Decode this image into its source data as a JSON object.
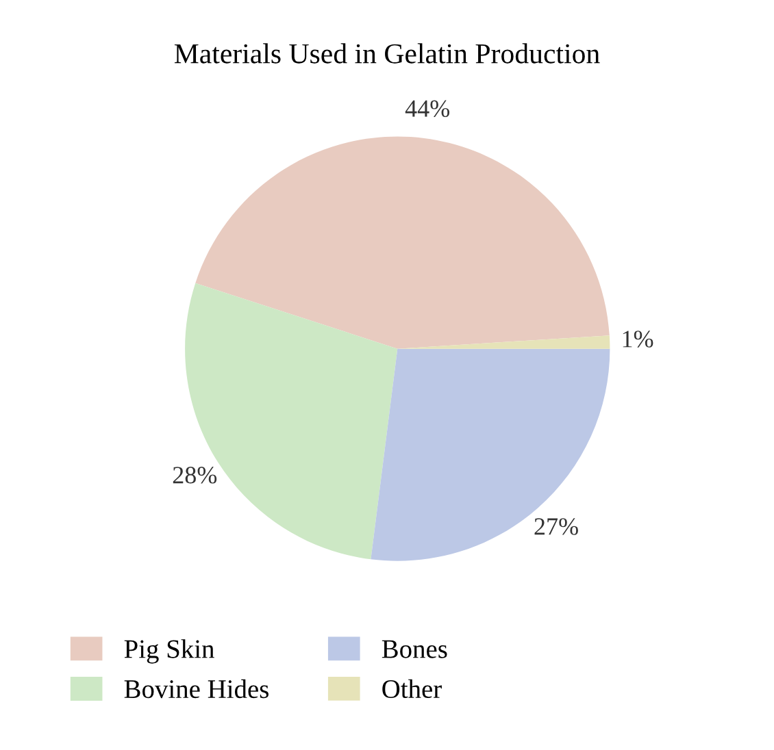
{
  "chart_data": {
    "type": "pie",
    "title": "Materials Used in Gelatin Production",
    "categories": [
      "Pig Skin",
      "Bovine Hides",
      "Bones",
      "Other"
    ],
    "values": [
      44,
      28,
      27,
      1
    ],
    "value_labels": [
      "44%",
      "28%",
      "27%",
      "1%"
    ],
    "colors": [
      "#e8cbc0",
      "#cde8c5",
      "#bcc8e6",
      "#e6e3b8"
    ],
    "legend": "bottom"
  }
}
